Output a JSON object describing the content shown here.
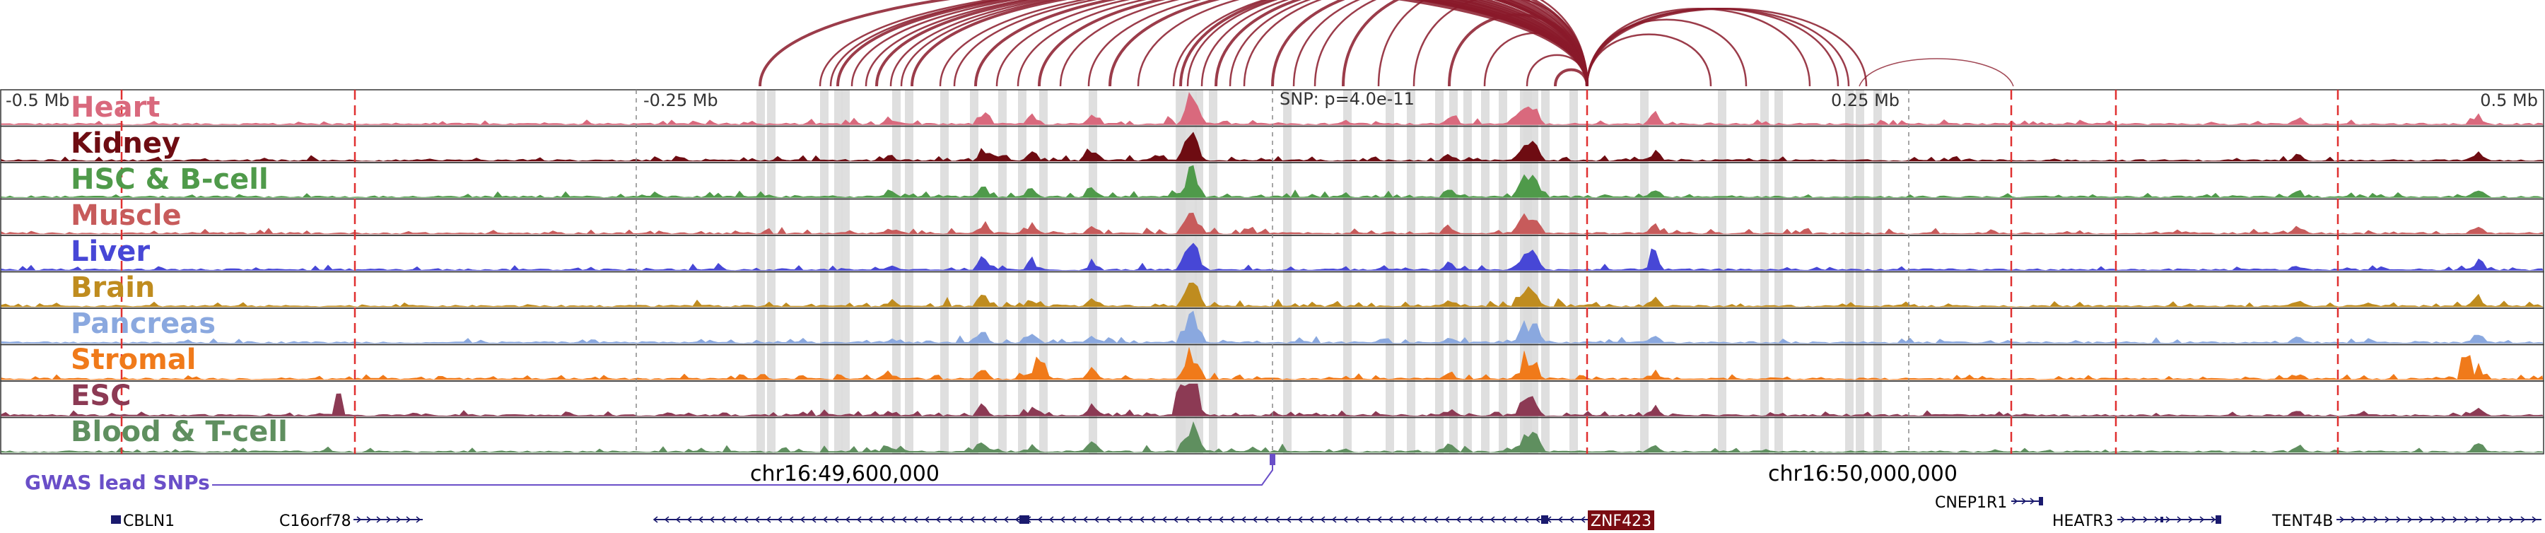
{
  "region": {
    "left_label": "-0.5 Mb",
    "mid_left_label": "-0.25 Mb",
    "mid_right_label": "0.25 Mb",
    "right_label": "0.5 Mb",
    "snp_label": "SNP: p=4.0e-11"
  },
  "tracks": [
    {
      "name": "Heart",
      "color": "#d9697d"
    },
    {
      "name": "Kidney",
      "color": "#6e0c12"
    },
    {
      "name": "HSC & B-cell",
      "color": "#4f9a4a"
    },
    {
      "name": "Muscle",
      "color": "#c75b5b"
    },
    {
      "name": "Liver",
      "color": "#4747d6"
    },
    {
      "name": "Brain",
      "color": "#bf8c1f"
    },
    {
      "name": "Pancreas",
      "color": "#8aa8df"
    },
    {
      "name": "Stromal",
      "color": "#f07a1a"
    },
    {
      "name": "ESC",
      "color": "#8c3a54"
    },
    {
      "name": "Blood & T-cell",
      "color": "#5f8f5f"
    }
  ],
  "gwas": {
    "label": "GWAS lead SNPs",
    "color": "#6a4fc8"
  },
  "coordinates": [
    "chr16:49,600,000",
    "chr16:50,000,000"
  ],
  "genes": [
    {
      "name": "CBLN1",
      "highlight": false
    },
    {
      "name": "C16orf78",
      "highlight": false
    },
    {
      "name": "ZNF423",
      "highlight": true
    },
    {
      "name": "CNEP1R1",
      "highlight": false
    },
    {
      "name": "HEATR3",
      "highlight": false
    },
    {
      "name": "TENT4B",
      "highlight": false
    }
  ],
  "colors": {
    "loop": "#8a1a2a",
    "highlight_band": "#dcdcdc",
    "marker_line": "#e03030",
    "gene": "#1a1a6e",
    "highlight_gene_bg": "#7a0c12"
  }
}
